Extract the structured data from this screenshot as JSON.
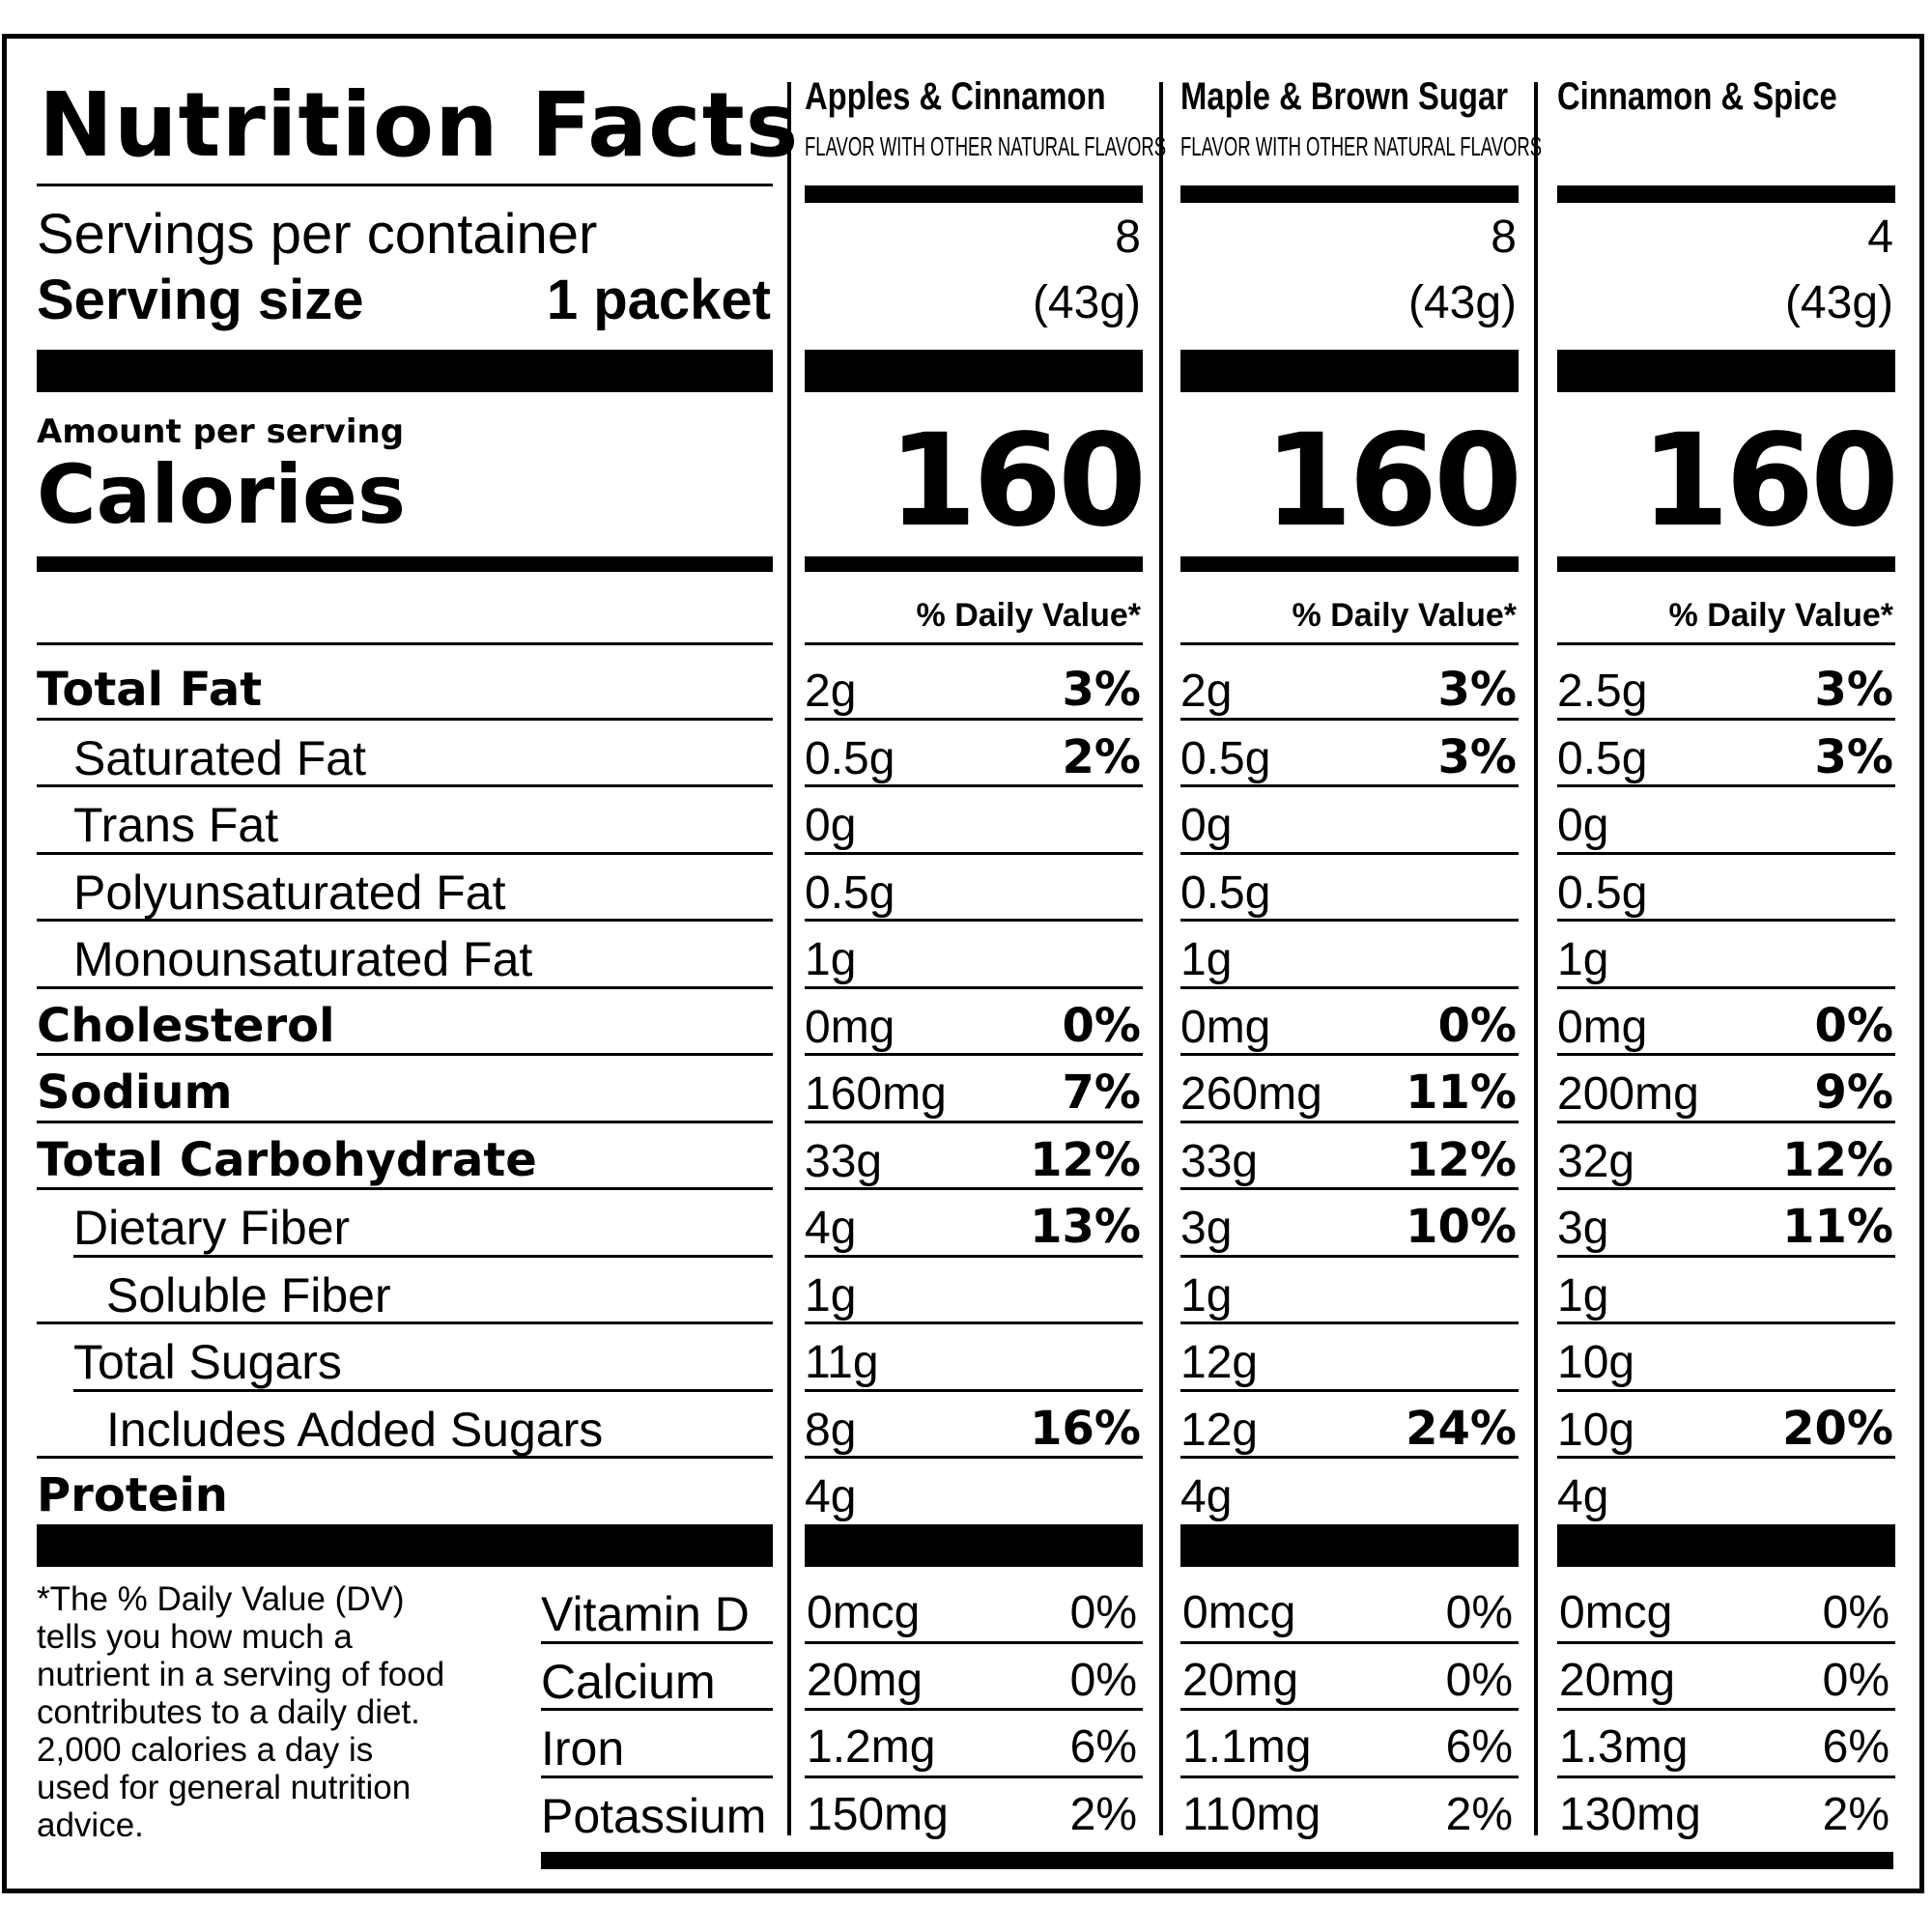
{
  "title": "Nutrition Facts",
  "servings_per_container_label": "Servings per container",
  "serving_size_label": "Serving size",
  "serving_size_value": "1 packet",
  "amount_per_serving_label": "Amount per serving",
  "calories_label": "Calories",
  "dv_header": "% Daily Value*",
  "footnote": "*The % Daily Value (DV) tells you how much a nutrient in a serving of food contributes to a daily diet. 2,000 calories a day is used for general nutrition advice.",
  "products": [
    {
      "name": "Apples & Cinnamon",
      "subtitle": "FLAVOR WITH OTHER NATURAL FLAVORS",
      "servings": "8",
      "serving_size": "(43g)",
      "calories": "160",
      "nutrients": [
        {
          "amount": "2g",
          "dv": "3%"
        },
        {
          "amount": "0.5g",
          "dv": "2%"
        },
        {
          "amount": "0g",
          "dv": ""
        },
        {
          "amount": "0.5g",
          "dv": ""
        },
        {
          "amount": "1g",
          "dv": ""
        },
        {
          "amount": "0mg",
          "dv": "0%"
        },
        {
          "amount": "160mg",
          "dv": "7%"
        },
        {
          "amount": "33g",
          "dv": "12%"
        },
        {
          "amount": "4g",
          "dv": "13%"
        },
        {
          "amount": "1g",
          "dv": ""
        },
        {
          "amount": "11g",
          "dv": ""
        },
        {
          "amount": "8g",
          "dv": "16%"
        },
        {
          "amount": "4g",
          "dv": ""
        }
      ],
      "micros": [
        {
          "amount": "0mcg",
          "dv": "0%"
        },
        {
          "amount": "20mg",
          "dv": "0%"
        },
        {
          "amount": "1.2mg",
          "dv": "6%"
        },
        {
          "amount": "150mg",
          "dv": "2%"
        }
      ]
    },
    {
      "name": "Maple & Brown Sugar",
      "subtitle": "FLAVOR WITH OTHER NATURAL FLAVORS",
      "servings": "8",
      "serving_size": "(43g)",
      "calories": "160",
      "nutrients": [
        {
          "amount": "2g",
          "dv": "3%"
        },
        {
          "amount": "0.5g",
          "dv": "3%"
        },
        {
          "amount": "0g",
          "dv": ""
        },
        {
          "amount": "0.5g",
          "dv": ""
        },
        {
          "amount": "1g",
          "dv": ""
        },
        {
          "amount": "0mg",
          "dv": "0%"
        },
        {
          "amount": "260mg",
          "dv": "11%"
        },
        {
          "amount": "33g",
          "dv": "12%"
        },
        {
          "amount": "3g",
          "dv": "10%"
        },
        {
          "amount": "1g",
          "dv": ""
        },
        {
          "amount": "12g",
          "dv": ""
        },
        {
          "amount": "12g",
          "dv": "24%"
        },
        {
          "amount": "4g",
          "dv": ""
        }
      ],
      "micros": [
        {
          "amount": "0mcg",
          "dv": "0%"
        },
        {
          "amount": "20mg",
          "dv": "0%"
        },
        {
          "amount": "1.1mg",
          "dv": "6%"
        },
        {
          "amount": "110mg",
          "dv": "2%"
        }
      ]
    },
    {
      "name": "Cinnamon & Spice",
      "subtitle": "",
      "servings": "4",
      "serving_size": "(43g)",
      "calories": "160",
      "nutrients": [
        {
          "amount": "2.5g",
          "dv": "3%"
        },
        {
          "amount": "0.5g",
          "dv": "3%"
        },
        {
          "amount": "0g",
          "dv": ""
        },
        {
          "amount": "0.5g",
          "dv": ""
        },
        {
          "amount": "1g",
          "dv": ""
        },
        {
          "amount": "0mg",
          "dv": "0%"
        },
        {
          "amount": "200mg",
          "dv": "9%"
        },
        {
          "amount": "32g",
          "dv": "12%"
        },
        {
          "amount": "3g",
          "dv": "11%"
        },
        {
          "amount": "1g",
          "dv": ""
        },
        {
          "amount": "10g",
          "dv": ""
        },
        {
          "amount": "10g",
          "dv": "20%"
        },
        {
          "amount": "4g",
          "dv": ""
        }
      ],
      "micros": [
        {
          "amount": "0mcg",
          "dv": "0%"
        },
        {
          "amount": "20mg",
          "dv": "0%"
        },
        {
          "amount": "1.3mg",
          "dv": "6%"
        },
        {
          "amount": "130mg",
          "dv": "2%"
        }
      ]
    }
  ],
  "nutrient_rows": [
    {
      "label": "Total Fat",
      "bold": true,
      "indent": 0
    },
    {
      "label": "Saturated Fat",
      "bold": false,
      "indent": 1
    },
    {
      "label": "Trans Fat",
      "bold": false,
      "indent": 1
    },
    {
      "label": "Polyunsaturated Fat",
      "bold": false,
      "indent": 1
    },
    {
      "label": "Monounsaturated Fat",
      "bold": false,
      "indent": 1
    },
    {
      "label": "Cholesterol",
      "bold": true,
      "indent": 0
    },
    {
      "label": "Sodium",
      "bold": true,
      "indent": 0
    },
    {
      "label": "Total Carbohydrate",
      "bold": true,
      "indent": 0
    },
    {
      "label": "Dietary Fiber",
      "bold": false,
      "indent": 1
    },
    {
      "label": "Soluble Fiber",
      "bold": false,
      "indent": 2
    },
    {
      "label": "Total Sugars",
      "bold": false,
      "indent": 1
    },
    {
      "label": "Includes Added Sugars",
      "bold": false,
      "indent": 2
    },
    {
      "label": "Protein",
      "bold": true,
      "indent": 0
    }
  ],
  "micro_rows": [
    {
      "label": "Vitamin D"
    },
    {
      "label": "Calcium"
    },
    {
      "label": "Iron"
    },
    {
      "label": "Potassium"
    }
  ]
}
